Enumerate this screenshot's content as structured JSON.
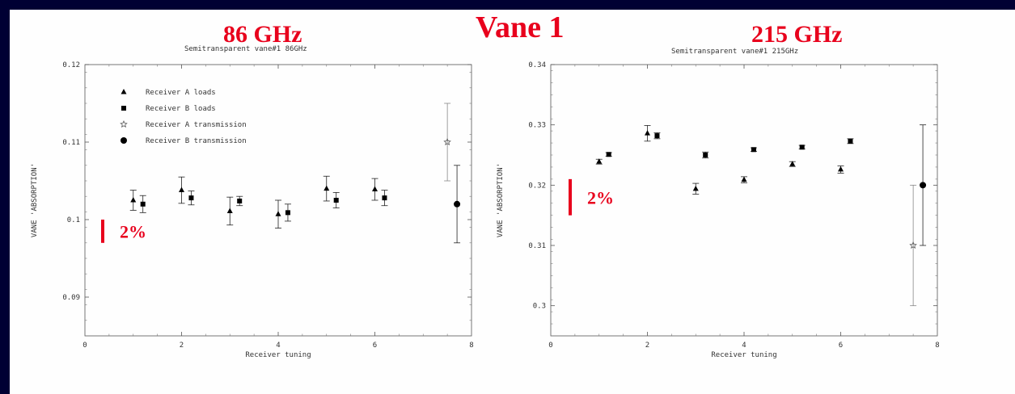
{
  "title": "Vane 1",
  "scale_bar_label": "2%",
  "colors": {
    "background": "#000033",
    "panel": "#fefefe",
    "accent": "#e8001c",
    "ink": "#000000",
    "grey": "#888888"
  },
  "chart_data": [
    {
      "type": "scatter",
      "heading": "86 GHz",
      "title": "Semitransparent vane#1 86GHz",
      "xlabel": "Receiver tuning",
      "ylabel": "VANE 'ABSORPTION'",
      "xlim": [
        0,
        8
      ],
      "ylim": [
        0.085,
        0.12
      ],
      "xticks": [
        "0",
        "2",
        "4",
        "6",
        "8"
      ],
      "yticks": [
        "0.09",
        "0.1",
        "0.11",
        "0.12"
      ],
      "legend_position": "top-left",
      "series": [
        {
          "name": "Receiver A loads",
          "marker": "triangle",
          "points": [
            {
              "x": 1,
              "y": 0.1025,
              "err": 0.0013
            },
            {
              "x": 2,
              "y": 0.1038,
              "err": 0.0017
            },
            {
              "x": 3,
              "y": 0.1011,
              "err": 0.0018
            },
            {
              "x": 4,
              "y": 0.1007,
              "err": 0.0018
            },
            {
              "x": 5,
              "y": 0.104,
              "err": 0.0016
            },
            {
              "x": 6,
              "y": 0.1039,
              "err": 0.0014
            }
          ]
        },
        {
          "name": "Receiver B loads",
          "marker": "square",
          "points": [
            {
              "x": 1.2,
              "y": 0.102,
              "err": 0.0011
            },
            {
              "x": 2.2,
              "y": 0.1028,
              "err": 0.0009
            },
            {
              "x": 3.2,
              "y": 0.1024,
              "err": 0.0006
            },
            {
              "x": 4.2,
              "y": 0.1009,
              "err": 0.0011
            },
            {
              "x": 5.2,
              "y": 0.1025,
              "err": 0.001
            },
            {
              "x": 6.2,
              "y": 0.1028,
              "err": 0.001
            }
          ]
        },
        {
          "name": "Receiver A transmission",
          "marker": "star",
          "points": [
            {
              "x": 7.5,
              "y": 0.11,
              "err": 0.005
            }
          ]
        },
        {
          "name": "Receiver B transmission",
          "marker": "circle",
          "points": [
            {
              "x": 7.7,
              "y": 0.102,
              "err": 0.005
            }
          ]
        }
      ]
    },
    {
      "type": "scatter",
      "heading": "215 GHz",
      "title": "Semitransparent vane#1 215GHz",
      "xlabel": "Receiver tuning",
      "ylabel": "VANE 'ABSORPTION'",
      "xlim": [
        0,
        8
      ],
      "ylim": [
        0.295,
        0.34
      ],
      "xticks": [
        "0",
        "2",
        "4",
        "6",
        "8"
      ],
      "yticks": [
        "0.3",
        "0.31",
        "0.32",
        "0.33",
        "0.34"
      ],
      "series": [
        {
          "name": "Receiver A loads",
          "marker": "triangle",
          "points": [
            {
              "x": 1,
              "y": 0.3239,
              "err": 0.0004
            },
            {
              "x": 2,
              "y": 0.3286,
              "err": 0.0013
            },
            {
              "x": 3,
              "y": 0.3194,
              "err": 0.0009
            },
            {
              "x": 4,
              "y": 0.3209,
              "err": 0.0005
            },
            {
              "x": 5,
              "y": 0.3235,
              "err": 0.0004
            },
            {
              "x": 6,
              "y": 0.3226,
              "err": 0.0006
            }
          ]
        },
        {
          "name": "Receiver B loads",
          "marker": "square",
          "points": [
            {
              "x": 1.2,
              "y": 0.3251,
              "err": 0.0003
            },
            {
              "x": 2.2,
              "y": 0.3282,
              "err": 0.0005
            },
            {
              "x": 3.2,
              "y": 0.325,
              "err": 0.0005
            },
            {
              "x": 4.2,
              "y": 0.3259,
              "err": 0.0003
            },
            {
              "x": 5.2,
              "y": 0.3263,
              "err": 0.0003
            },
            {
              "x": 6.2,
              "y": 0.3273,
              "err": 0.0004
            }
          ]
        },
        {
          "name": "Receiver A transmission",
          "marker": "star",
          "points": [
            {
              "x": 7.5,
              "y": 0.31,
              "err": 0.01
            }
          ]
        },
        {
          "name": "Receiver B transmission",
          "marker": "circle",
          "points": [
            {
              "x": 7.7,
              "y": 0.32,
              "err": 0.01
            }
          ]
        }
      ]
    }
  ]
}
